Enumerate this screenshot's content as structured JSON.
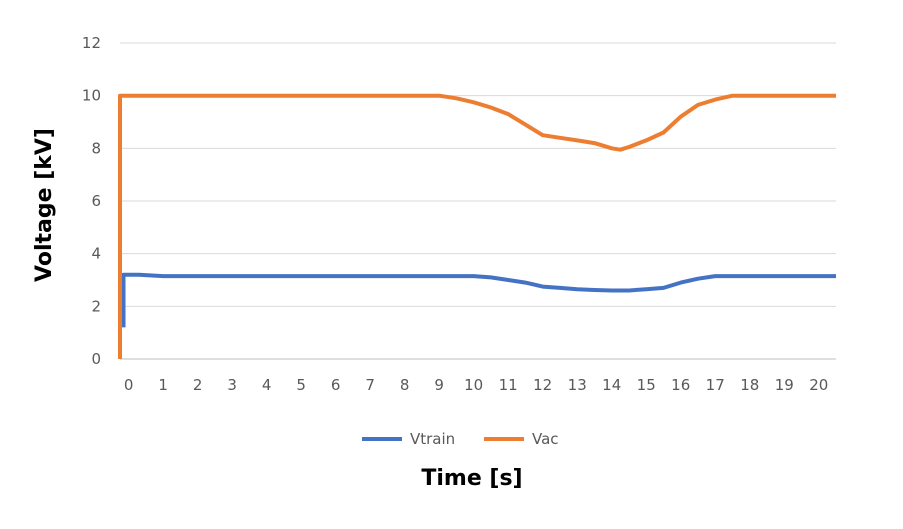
{
  "chart_data": {
    "type": "line",
    "title": "",
    "xlabel": "Time [s]",
    "ylabel": "Voltage [kV]",
    "xlim": [
      -0.25,
      20.5
    ],
    "ylim": [
      0,
      12
    ],
    "xticks": [
      0,
      1,
      2,
      3,
      4,
      5,
      6,
      7,
      8,
      9,
      10,
      11,
      12,
      13,
      14,
      15,
      16,
      17,
      18,
      19,
      20
    ],
    "yticks": [
      0,
      2,
      4,
      6,
      8,
      10,
      12
    ],
    "grid": "horizontal",
    "legend_position": "bottom",
    "series": [
      {
        "name": "Vtrain",
        "color": "#4472C4",
        "points": [
          [
            -0.15,
            1.2
          ],
          [
            -0.15,
            3.2
          ],
          [
            0.3,
            3.2
          ],
          [
            1,
            3.15
          ],
          [
            9,
            3.15
          ],
          [
            10,
            3.15
          ],
          [
            10.5,
            3.1
          ],
          [
            11,
            3.0
          ],
          [
            11.5,
            2.9
          ],
          [
            12,
            2.75
          ],
          [
            12.5,
            2.7
          ],
          [
            13,
            2.65
          ],
          [
            13.5,
            2.62
          ],
          [
            14,
            2.6
          ],
          [
            14.5,
            2.6
          ],
          [
            15,
            2.65
          ],
          [
            15.5,
            2.7
          ],
          [
            16,
            2.9
          ],
          [
            16.5,
            3.05
          ],
          [
            17,
            3.15
          ],
          [
            18,
            3.15
          ],
          [
            19,
            3.15
          ],
          [
            20,
            3.15
          ],
          [
            20.5,
            3.15
          ]
        ]
      },
      {
        "name": "Vac",
        "color": "#ED7D31",
        "points": [
          [
            -0.25,
            0.0
          ],
          [
            -0.25,
            10.0
          ],
          [
            0,
            10.0
          ],
          [
            5,
            10.0
          ],
          [
            9,
            10.0
          ],
          [
            9.5,
            9.9
          ],
          [
            10,
            9.75
          ],
          [
            10.5,
            9.55
          ],
          [
            11,
            9.3
          ],
          [
            11.5,
            8.9
          ],
          [
            12,
            8.5
          ],
          [
            12.5,
            8.4
          ],
          [
            13,
            8.3
          ],
          [
            13.5,
            8.2
          ],
          [
            14,
            8.0
          ],
          [
            14.25,
            7.95
          ],
          [
            14.5,
            8.05
          ],
          [
            15,
            8.3
          ],
          [
            15.5,
            8.6
          ],
          [
            16,
            9.2
          ],
          [
            16.5,
            9.65
          ],
          [
            17,
            9.85
          ],
          [
            17.5,
            10.0
          ],
          [
            18,
            10.0
          ],
          [
            19,
            10.0
          ],
          [
            20,
            10.0
          ],
          [
            20.5,
            10.0
          ]
        ]
      }
    ]
  }
}
